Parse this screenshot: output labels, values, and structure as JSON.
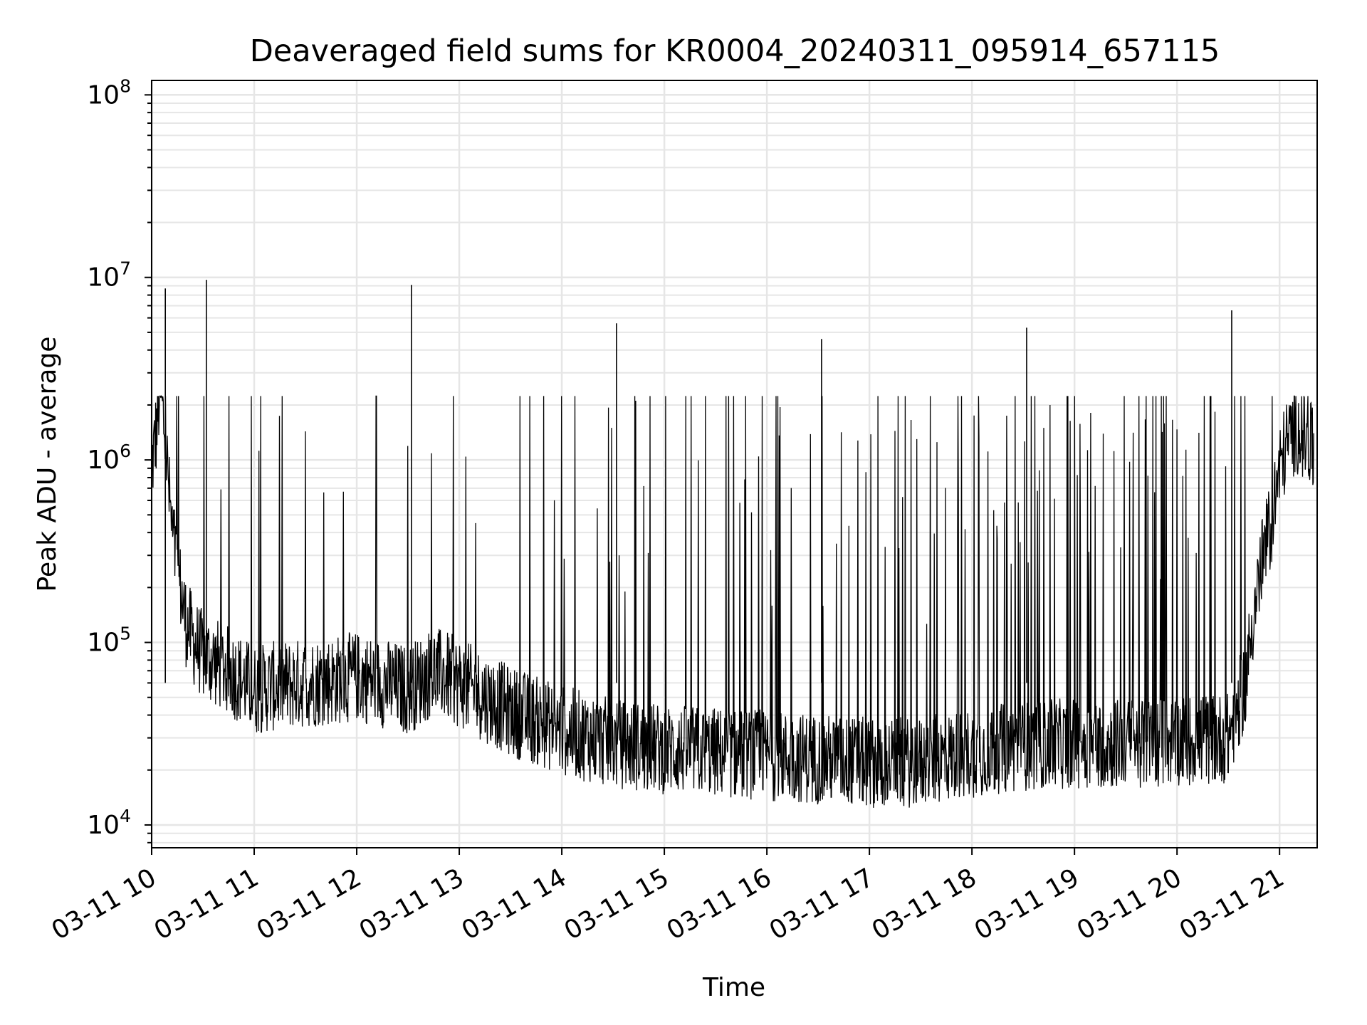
{
  "chart_data": {
    "type": "line",
    "title": "Deaveraged field sums for KR0004_20240311_095914_657115",
    "xlabel": "Time",
    "ylabel": "Peak ADU - average",
    "yscale": "log",
    "ylim": [
      7500,
      120000000
    ],
    "xlim": [
      "2024-03-11 10:00",
      "2024-03-11 21:22"
    ],
    "x_tick_labels": [
      "03-11 10",
      "03-11 11",
      "03-11 12",
      "03-11 13",
      "03-11 14",
      "03-11 15",
      "03-11 16",
      "03-11 17",
      "03-11 18",
      "03-11 19",
      "03-11 20",
      "03-11 21"
    ],
    "y_ticks": [
      {
        "value": 10000,
        "base": "10",
        "exp": "4"
      },
      {
        "value": 100000,
        "base": "10",
        "exp": "5"
      },
      {
        "value": 1000000,
        "base": "10",
        "exp": "6"
      },
      {
        "value": 10000000,
        "base": "10",
        "exp": "7"
      },
      {
        "value": 100000000,
        "base": "10",
        "exp": "8"
      }
    ],
    "grid": true,
    "line_color": "#000000",
    "grid_color": "#e6e6e6",
    "series": [
      {
        "x": [
          "2024-03-11 10:00",
          "2024-03-11 10:03",
          "2024-03-11 10:05",
          "2024-03-11 10:08",
          "2024-03-11 10:10",
          "2024-03-11 10:12",
          "2024-03-11 10:15",
          "2024-03-11 10:18",
          "2024-03-11 10:20",
          "2024-03-11 10:25",
          "2024-03-11 10:30",
          "2024-03-11 10:40",
          "2024-03-11 10:50",
          "2024-03-11 11:00",
          "2024-03-11 11:15",
          "2024-03-11 11:30",
          "2024-03-11 11:45",
          "2024-03-11 12:00",
          "2024-03-11 12:15",
          "2024-03-11 12:30",
          "2024-03-11 12:45",
          "2024-03-11 13:00",
          "2024-03-11 13:30",
          "2024-03-11 14:00",
          "2024-03-11 14:30",
          "2024-03-11 15:00",
          "2024-03-11 15:30",
          "2024-03-11 16:00",
          "2024-03-11 16:30",
          "2024-03-11 17:00",
          "2024-03-11 17:30",
          "2024-03-11 18:00",
          "2024-03-11 18:30",
          "2024-03-11 19:00",
          "2024-03-11 19:30",
          "2024-03-11 20:00",
          "2024-03-11 20:30",
          "2024-03-11 20:40",
          "2024-03-11 20:45",
          "2024-03-11 20:50",
          "2024-03-11 20:55",
          "2024-03-11 21:00",
          "2024-03-11 21:05",
          "2024-03-11 21:10",
          "2024-03-11 21:15",
          "2024-03-11 21:20"
        ],
        "y": [
          900000,
          1500000,
          2500000,
          1300000,
          700000,
          400000,
          250000,
          170000,
          130000,
          100000,
          85000,
          75000,
          65000,
          55000,
          58000,
          60000,
          62000,
          65000,
          60000,
          55000,
          70000,
          60000,
          42000,
          33000,
          28000,
          26000,
          25000,
          24000,
          23000,
          22000,
          22000,
          25000,
          27000,
          28000,
          28000,
          29000,
          30000,
          60000,
          150000,
          280000,
          450000,
          900000,
          1300000,
          1500000,
          1300000,
          1100000
        ]
      }
    ],
    "spikes": [
      {
        "x": "2024-03-11 10:08",
        "y": 8700000
      },
      {
        "x": "2024-03-11 10:32",
        "y": 9700000
      },
      {
        "x": "2024-03-11 12:32",
        "y": 9100000
      },
      {
        "x": "2024-03-11 14:32",
        "y": 5600000
      },
      {
        "x": "2024-03-11 16:32",
        "y": 4600000
      },
      {
        "x": "2024-03-11 18:32",
        "y": 5300000
      },
      {
        "x": "2024-03-11 20:32",
        "y": 6600000
      }
    ]
  }
}
